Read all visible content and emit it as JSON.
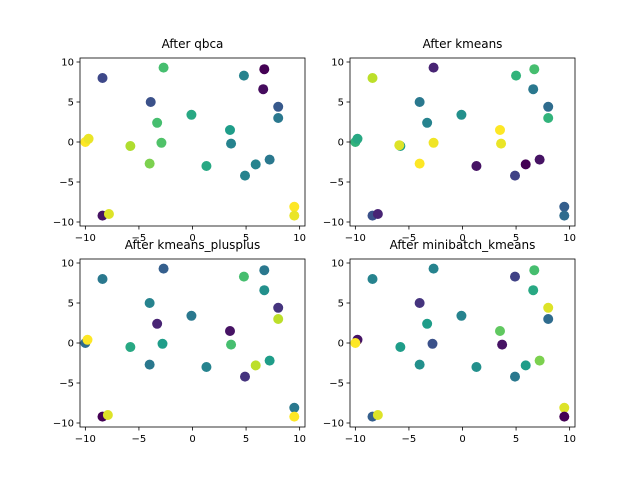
{
  "chart_data": [
    {
      "type": "scatter",
      "title": "After qbca",
      "xlabel": "",
      "ylabel": "",
      "xlim": [
        -10.5,
        10.5
      ],
      "ylim": [
        -10.5,
        10.5
      ],
      "xticks": [
        -10,
        -5,
        0,
        5,
        10
      ],
      "yticks": [
        -10,
        -5,
        0,
        5,
        10
      ],
      "grid": false,
      "points": [
        {
          "x": -8.4,
          "y": 8.0,
          "c": 0.22
        },
        {
          "x": -3.9,
          "y": 5.0,
          "c": 0.25
        },
        {
          "x": -2.7,
          "y": 9.3,
          "c": 0.7
        },
        {
          "x": 4.8,
          "y": 8.3,
          "c": 0.45
        },
        {
          "x": 6.7,
          "y": 9.1,
          "c": 0.0
        },
        {
          "x": 6.6,
          "y": 6.6,
          "c": 0.03
        },
        {
          "x": 8.0,
          "y": 4.4,
          "c": 0.28
        },
        {
          "x": 8.0,
          "y": 3.0,
          "c": 0.4
        },
        {
          "x": -10.0,
          "y": 0.0,
          "c": 1.0
        },
        {
          "x": -9.7,
          "y": 0.4,
          "c": 0.97
        },
        {
          "x": -5.8,
          "y": -0.5,
          "c": 0.88
        },
        {
          "x": -3.3,
          "y": 2.4,
          "c": 0.7
        },
        {
          "x": -2.9,
          "y": -0.1,
          "c": 0.72
        },
        {
          "x": -0.1,
          "y": 3.4,
          "c": 0.6
        },
        {
          "x": 3.5,
          "y": 1.5,
          "c": 0.55
        },
        {
          "x": 3.6,
          "y": -0.2,
          "c": 0.45
        },
        {
          "x": -4.0,
          "y": -2.7,
          "c": 0.8
        },
        {
          "x": 1.3,
          "y": -3.0,
          "c": 0.6
        },
        {
          "x": 4.9,
          "y": -4.2,
          "c": 0.45
        },
        {
          "x": 5.9,
          "y": -2.8,
          "c": 0.45
        },
        {
          "x": 7.2,
          "y": -2.2,
          "c": 0.4
        },
        {
          "x": -8.4,
          "y": -9.2,
          "c": 0.05
        },
        {
          "x": -7.8,
          "y": -9.0,
          "c": 0.95
        },
        {
          "x": 9.5,
          "y": -8.1,
          "c": 1.0
        },
        {
          "x": 9.5,
          "y": -9.2,
          "c": 0.97
        }
      ]
    },
    {
      "type": "scatter",
      "title": "After kmeans",
      "xlabel": "",
      "ylabel": "",
      "xlim": [
        -10.5,
        10.5
      ],
      "ylim": [
        -10.5,
        10.5
      ],
      "xticks": [
        -10,
        -5,
        0,
        5,
        10
      ],
      "yticks": [
        -10,
        -5,
        0,
        5,
        10
      ],
      "grid": false,
      "points": [
        {
          "x": -8.4,
          "y": 8.0,
          "c": 0.9
        },
        {
          "x": -2.7,
          "y": 9.3,
          "c": 0.1
        },
        {
          "x": 5.0,
          "y": 8.3,
          "c": 0.65
        },
        {
          "x": 6.7,
          "y": 9.1,
          "c": 0.7
        },
        {
          "x": 6.6,
          "y": 6.6,
          "c": 0.4
        },
        {
          "x": 8.0,
          "y": 4.4,
          "c": 0.35
        },
        {
          "x": 8.0,
          "y": 3.0,
          "c": 0.65
        },
        {
          "x": -4.0,
          "y": 5.0,
          "c": 0.4
        },
        {
          "x": -3.3,
          "y": 2.4,
          "c": 0.45
        },
        {
          "x": -0.1,
          "y": 3.4,
          "c": 0.5
        },
        {
          "x": 3.5,
          "y": 1.5,
          "c": 1.0
        },
        {
          "x": 3.6,
          "y": -0.2,
          "c": 0.97
        },
        {
          "x": -10.0,
          "y": 0.0,
          "c": 0.65
        },
        {
          "x": -9.8,
          "y": 0.4,
          "c": 0.6
        },
        {
          "x": -5.8,
          "y": -0.5,
          "c": 0.55
        },
        {
          "x": -5.9,
          "y": -0.4,
          "c": 0.95
        },
        {
          "x": -2.7,
          "y": -0.1,
          "c": 0.98
        },
        {
          "x": -4.0,
          "y": -2.7,
          "c": 1.0
        },
        {
          "x": 1.3,
          "y": -3.0,
          "c": 0.05
        },
        {
          "x": 4.9,
          "y": -4.2,
          "c": 0.2
        },
        {
          "x": 5.9,
          "y": -2.8,
          "c": 0.0
        },
        {
          "x": 7.2,
          "y": -2.2,
          "c": 0.05
        },
        {
          "x": -8.4,
          "y": -9.2,
          "c": 0.25
        },
        {
          "x": -7.9,
          "y": -9.0,
          "c": 0.1
        },
        {
          "x": 9.5,
          "y": -8.1,
          "c": 0.3
        },
        {
          "x": 9.5,
          "y": -9.2,
          "c": 0.35
        }
      ]
    },
    {
      "type": "scatter",
      "title": "After kmeans_plusplus",
      "xlabel": "",
      "ylabel": "",
      "xlim": [
        -10.5,
        10.5
      ],
      "ylim": [
        -10.5,
        10.5
      ],
      "xticks": [
        -10,
        -5,
        0,
        5,
        10
      ],
      "yticks": [
        -10,
        -5,
        0,
        5,
        10
      ],
      "grid": false,
      "points": [
        {
          "x": -8.4,
          "y": 8.0,
          "c": 0.4
        },
        {
          "x": -2.7,
          "y": 9.3,
          "c": 0.3
        },
        {
          "x": 4.8,
          "y": 8.3,
          "c": 0.7
        },
        {
          "x": 6.7,
          "y": 9.1,
          "c": 0.4
        },
        {
          "x": 6.7,
          "y": 6.6,
          "c": 0.5
        },
        {
          "x": 8.0,
          "y": 4.4,
          "c": 0.15
        },
        {
          "x": 8.0,
          "y": 3.0,
          "c": 0.9
        },
        {
          "x": -4.0,
          "y": 5.0,
          "c": 0.45
        },
        {
          "x": -3.3,
          "y": 2.4,
          "c": 0.1
        },
        {
          "x": -0.1,
          "y": 3.4,
          "c": 0.4
        },
        {
          "x": 3.5,
          "y": 1.5,
          "c": 0.05
        },
        {
          "x": 3.6,
          "y": -0.2,
          "c": 0.7
        },
        {
          "x": -10.0,
          "y": 0.0,
          "c": 0.35
        },
        {
          "x": -9.8,
          "y": 0.4,
          "c": 1.0
        },
        {
          "x": -5.8,
          "y": -0.5,
          "c": 0.6
        },
        {
          "x": -2.8,
          "y": -0.1,
          "c": 0.55
        },
        {
          "x": -4.0,
          "y": -2.7,
          "c": 0.4
        },
        {
          "x": 1.3,
          "y": -3.0,
          "c": 0.45
        },
        {
          "x": 4.9,
          "y": -4.2,
          "c": 0.15
        },
        {
          "x": 5.9,
          "y": -2.8,
          "c": 0.9
        },
        {
          "x": 7.2,
          "y": -2.2,
          "c": 0.55
        },
        {
          "x": -8.4,
          "y": -9.2,
          "c": 0.0
        },
        {
          "x": -7.9,
          "y": -9.0,
          "c": 0.95
        },
        {
          "x": 9.5,
          "y": -8.1,
          "c": 0.4
        },
        {
          "x": 9.5,
          "y": -9.2,
          "c": 1.0
        }
      ]
    },
    {
      "type": "scatter",
      "title": "After minibatch_kmeans",
      "xlabel": "",
      "ylabel": "",
      "xlim": [
        -10.5,
        10.5
      ],
      "ylim": [
        -10.5,
        10.5
      ],
      "xticks": [
        -10,
        -5,
        0,
        5,
        10
      ],
      "yticks": [
        -10,
        -5,
        0,
        5,
        10
      ],
      "grid": false,
      "points": [
        {
          "x": -8.4,
          "y": 8.0,
          "c": 0.45
        },
        {
          "x": -2.7,
          "y": 9.3,
          "c": 0.45
        },
        {
          "x": 4.9,
          "y": 8.3,
          "c": 0.2
        },
        {
          "x": 6.7,
          "y": 9.1,
          "c": 0.7
        },
        {
          "x": 6.6,
          "y": 6.6,
          "c": 0.6
        },
        {
          "x": 8.0,
          "y": 4.4,
          "c": 0.95
        },
        {
          "x": 8.0,
          "y": 3.0,
          "c": 0.35
        },
        {
          "x": -4.0,
          "y": 5.0,
          "c": 0.15
        },
        {
          "x": -3.3,
          "y": 2.4,
          "c": 0.55
        },
        {
          "x": -0.1,
          "y": 3.4,
          "c": 0.45
        },
        {
          "x": 3.5,
          "y": 1.5,
          "c": 0.75
        },
        {
          "x": 3.7,
          "y": -0.2,
          "c": 0.05
        },
        {
          "x": -9.8,
          "y": 0.4,
          "c": 0.05
        },
        {
          "x": -10.0,
          "y": 0.0,
          "c": 1.0
        },
        {
          "x": -5.8,
          "y": -0.5,
          "c": 0.55
        },
        {
          "x": -2.8,
          "y": -0.1,
          "c": 0.25
        },
        {
          "x": -4.0,
          "y": -2.7,
          "c": 0.5
        },
        {
          "x": 1.3,
          "y": -3.0,
          "c": 0.5
        },
        {
          "x": 4.9,
          "y": -4.2,
          "c": 0.4
        },
        {
          "x": 5.9,
          "y": -2.8,
          "c": 0.55
        },
        {
          "x": 7.2,
          "y": -2.2,
          "c": 0.8
        },
        {
          "x": -8.4,
          "y": -9.2,
          "c": 0.3
        },
        {
          "x": -7.9,
          "y": -9.0,
          "c": 0.95
        },
        {
          "x": 9.5,
          "y": -8.1,
          "c": 0.95
        },
        {
          "x": 9.5,
          "y": -9.2,
          "c": 0.0
        }
      ]
    }
  ],
  "colormap": [
    "#440154",
    "#482878",
    "#3e4989",
    "#31688e",
    "#26828e",
    "#1f9e89",
    "#35b779",
    "#6ece58",
    "#b5de2b",
    "#fde725"
  ]
}
